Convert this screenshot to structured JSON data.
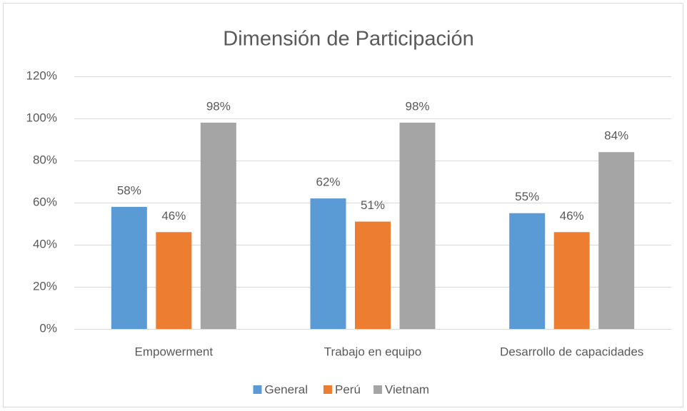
{
  "chart_data": {
    "type": "bar",
    "title": "Dimensión de Participación",
    "categories": [
      "Empowerment",
      "Trabajo en equipo",
      "Desarrollo de capacidades"
    ],
    "series": [
      {
        "name": "General",
        "color": "#5b9bd5",
        "values": [
          58,
          62,
          55
        ],
        "value_labels": [
          "58%",
          "62%",
          "55%"
        ]
      },
      {
        "name": "Perú",
        "color": "#ed7d31",
        "values": [
          46,
          51,
          46
        ],
        "value_labels": [
          "46%",
          "51%",
          "46%"
        ]
      },
      {
        "name": "Vietnam",
        "color": "#a5a5a5",
        "values": [
          98,
          98,
          84
        ],
        "value_labels": [
          "98%",
          "98%",
          "84%"
        ]
      }
    ],
    "ylim": [
      0,
      120
    ],
    "yticks": [
      {
        "value": 0,
        "label": "0%"
      },
      {
        "value": 20,
        "label": "20%"
      },
      {
        "value": 40,
        "label": "40%"
      },
      {
        "value": 60,
        "label": "60%"
      },
      {
        "value": 80,
        "label": "80%"
      },
      {
        "value": 100,
        "label": "100%"
      },
      {
        "value": 120,
        "label": "120%"
      }
    ],
    "grid": true,
    "legend": "bottom"
  }
}
